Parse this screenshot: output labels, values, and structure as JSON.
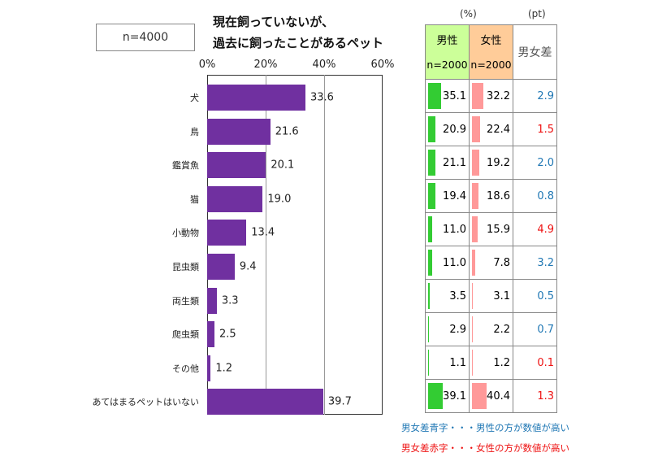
{
  "sample": "n=4000",
  "chart_data": {
    "type": "bar",
    "orientation": "horizontal",
    "title": [
      "現在飼っていないが、",
      "過去に飼ったことがあるペット"
    ],
    "xlim": [
      0,
      60
    ],
    "ticks": [
      "0%",
      "20%",
      "40%",
      "60%"
    ],
    "tick_values": [
      0,
      20,
      40,
      60
    ],
    "grid": true,
    "categories": [
      "犬",
      "鳥",
      "鑑賞魚",
      "猫",
      "小動物",
      "昆虫類",
      "両生類",
      "爬虫類",
      "その他",
      "あてはまるペットはいない"
    ],
    "values": [
      33.6,
      21.6,
      20.1,
      19.0,
      13.4,
      9.4,
      3.3,
      2.5,
      1.2,
      39.7
    ],
    "bar_color": "#7030a0"
  },
  "table": {
    "unit_pct": "(%)",
    "unit_pt": "(pt)",
    "headers": [
      {
        "label": "男性",
        "n": "n=2000",
        "color": "#ccff99"
      },
      {
        "label": "女性",
        "n": "n=2000",
        "color": "#ffcc99"
      },
      {
        "label": "男女差"
      }
    ],
    "male": [
      "35.1",
      "20.9",
      "21.1",
      "19.4",
      "11.0",
      "11.0",
      "3.5",
      "2.9",
      "1.1",
      "39.1"
    ],
    "female": [
      "32.2",
      "22.4",
      "19.2",
      "18.6",
      "15.9",
      "7.8",
      "3.1",
      "2.2",
      "1.2",
      "40.4"
    ],
    "diff": [
      "2.9",
      "1.5",
      "2.0",
      "0.8",
      "4.9",
      "3.2",
      "0.5",
      "0.7",
      "0.1",
      "1.3"
    ],
    "diff_higher": [
      "m",
      "f",
      "m",
      "m",
      "f",
      "m",
      "m",
      "m",
      "f",
      "f"
    ],
    "colors": {
      "male": "#1f77b4",
      "female": "#ee1111"
    }
  },
  "notes": {
    "blue": "男女差青字・・・男性の方が数値が高い",
    "red": "男女差赤字・・・女性の方が数値が高い"
  }
}
